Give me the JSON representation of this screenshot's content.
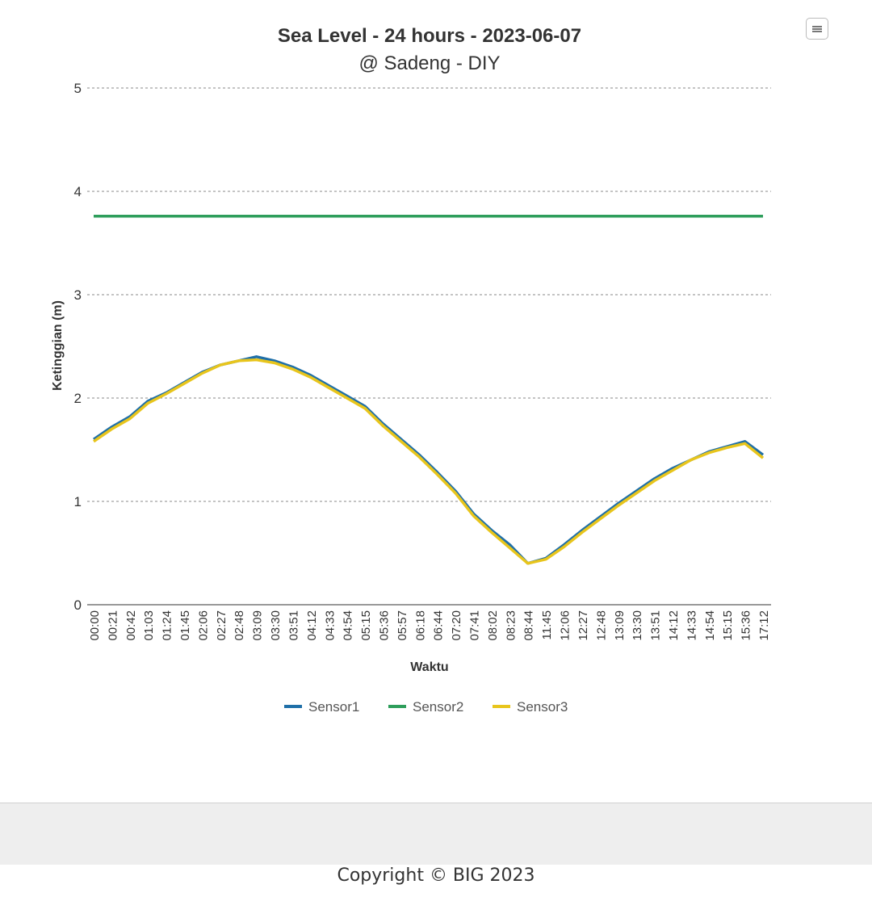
{
  "chart_data": {
    "type": "line",
    "title": "Sea Level - 24 hours - 2023-06-07",
    "subtitle": "@ Sadeng - DIY",
    "xlabel": "Waktu",
    "ylabel": "Ketinggian (m)",
    "ylim": [
      0,
      5
    ],
    "yticks": [
      0,
      1,
      2,
      3,
      4,
      5
    ],
    "grid": true,
    "legend_position": "bottom",
    "categories": [
      "00:00",
      "00:21",
      "00:42",
      "01:03",
      "01:24",
      "01:45",
      "02:06",
      "02:27",
      "02:48",
      "03:09",
      "03:30",
      "03:51",
      "04:12",
      "04:33",
      "04:54",
      "05:15",
      "05:36",
      "05:57",
      "06:18",
      "06:44",
      "07:20",
      "07:41",
      "08:02",
      "08:23",
      "08:44",
      "11:45",
      "12:06",
      "12:27",
      "12:48",
      "13:09",
      "13:30",
      "13:51",
      "14:12",
      "14:33",
      "14:54",
      "15:15",
      "15:36",
      "17:12"
    ],
    "series": [
      {
        "name": "Sensor1",
        "color": "#1f6fa8",
        "values": [
          1.6,
          1.72,
          1.82,
          1.97,
          2.05,
          2.15,
          2.25,
          2.32,
          2.36,
          2.4,
          2.36,
          2.3,
          2.22,
          2.12,
          2.02,
          1.92,
          1.75,
          1.6,
          1.45,
          1.28,
          1.1,
          0.88,
          0.72,
          0.58,
          0.4,
          0.45,
          0.58,
          0.72,
          0.85,
          0.98,
          1.1,
          1.22,
          1.32,
          1.4,
          1.48,
          1.53,
          1.58,
          1.45
        ]
      },
      {
        "name": "Sensor2",
        "color": "#2e9e5b",
        "values": [
          3.76,
          3.76,
          3.76,
          3.76,
          3.76,
          3.76,
          3.76,
          3.76,
          3.76,
          3.76,
          3.76,
          3.76,
          3.76,
          3.76,
          3.76,
          3.76,
          3.76,
          3.76,
          3.76,
          3.76,
          3.76,
          3.76,
          3.76,
          3.76,
          3.76,
          3.76,
          3.76,
          3.76,
          3.76,
          3.76,
          3.76,
          3.76,
          3.76,
          3.76,
          3.76,
          3.76,
          3.76,
          3.76
        ]
      },
      {
        "name": "Sensor3",
        "color": "#e8c51c",
        "values": [
          1.58,
          1.7,
          1.8,
          1.95,
          2.04,
          2.14,
          2.24,
          2.32,
          2.36,
          2.37,
          2.34,
          2.28,
          2.2,
          2.1,
          2.0,
          1.9,
          1.73,
          1.58,
          1.43,
          1.26,
          1.08,
          0.86,
          0.7,
          0.55,
          0.4,
          0.44,
          0.56,
          0.7,
          0.83,
          0.96,
          1.08,
          1.2,
          1.3,
          1.4,
          1.47,
          1.52,
          1.56,
          1.42
        ]
      }
    ]
  },
  "footer": {
    "copyright": "Copyright © BIG 2023"
  },
  "menu": {
    "icon": "hamburger-menu-icon"
  }
}
